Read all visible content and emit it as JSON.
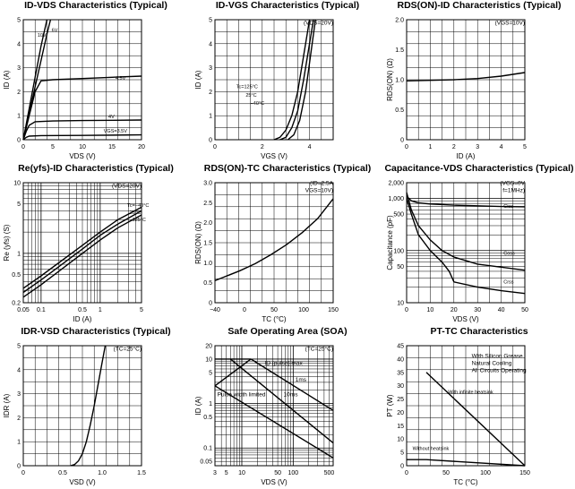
{
  "panels": [
    {
      "title": "ID-VDS Characteristics (Typical)",
      "ylabel": "ID (A)",
      "xlabel": "VDS (V)",
      "annotations": [],
      "xticks": [
        "0",
        "5",
        "10",
        "15",
        "20"
      ],
      "yticks": [
        "0",
        "1",
        "2",
        "3",
        "4",
        "5"
      ],
      "chart_data": {
        "type": "line",
        "xlim": [
          0,
          20
        ],
        "ylim": [
          0,
          5
        ],
        "xscale": "linear",
        "yscale": "linear",
        "grid": true,
        "series": [
          {
            "name": "10V",
            "x": [
              0,
              1,
              2,
              3,
              4
            ],
            "y": [
              0,
              1.3,
              2.6,
              3.9,
              5.0
            ]
          },
          {
            "name": "6V",
            "x": [
              0,
              1,
              2,
              3,
              4,
              4.6
            ],
            "y": [
              0,
              1.1,
              2.2,
              3.3,
              4.4,
              5.0
            ]
          },
          {
            "name": "4.5V",
            "x": [
              0,
              1,
              2,
              3,
              5,
              10,
              15,
              20
            ],
            "y": [
              0,
              1.0,
              2.0,
              2.45,
              2.5,
              2.55,
              2.6,
              2.65
            ]
          },
          {
            "name": "4V",
            "x": [
              0,
              0.5,
              1,
              2,
              5,
              10,
              20
            ],
            "y": [
              0,
              0.35,
              0.6,
              0.75,
              0.78,
              0.8,
              0.82
            ]
          },
          {
            "name": "VGS=3.5V",
            "x": [
              0,
              0.5,
              1,
              3,
              10,
              20
            ],
            "y": [
              0,
              0.1,
              0.15,
              0.17,
              0.18,
              0.2
            ]
          }
        ]
      }
    },
    {
      "title": "ID-VGS Characteristics (Typical)",
      "ylabel": "ID (A)",
      "xlabel": "VGS (V)",
      "annotations": [
        "(VDS=20V)"
      ],
      "xticks": [
        "0",
        "",
        "2",
        "",
        "4",
        ""
      ],
      "yticks": [
        "0",
        "1",
        "2",
        "3",
        "4",
        "5"
      ],
      "chart_data": {
        "type": "line",
        "xlim": [
          0,
          6
        ],
        "ylim": [
          0,
          5
        ],
        "xscale": "linear",
        "yscale": "linear",
        "grid": true,
        "series": [
          {
            "name": "Tc=125°C",
            "x": [
              3.0,
              3.3,
              3.6,
              3.9,
              4.2,
              4.5,
              4.8
            ],
            "y": [
              0,
              0.1,
              0.4,
              1.0,
              2.0,
              3.5,
              5.0
            ]
          },
          {
            "name": "25°C",
            "x": [
              3.3,
              3.6,
              3.9,
              4.2,
              4.5,
              4.8,
              5.0
            ],
            "y": [
              0,
              0.1,
              0.5,
              1.2,
              2.5,
              4.0,
              5.0
            ]
          },
          {
            "name": "−40°C",
            "x": [
              3.7,
              4.0,
              4.3,
              4.6,
              4.9,
              5.1
            ],
            "y": [
              0,
              0.2,
              0.8,
              2.0,
              3.8,
              5.0
            ]
          }
        ]
      }
    },
    {
      "title": "RDS(ON)-ID Characteristics (Typical)",
      "ylabel": "RDS(ON) (Ω)",
      "xlabel": "ID (A)",
      "annotations": [
        "(VGS=10V)"
      ],
      "xticks": [
        "0",
        "1",
        "2",
        "3",
        "4",
        "5"
      ],
      "yticks": [
        "0",
        "0.5",
        "1.0",
        "1.5",
        "2.0"
      ],
      "chart_data": {
        "type": "line",
        "xlim": [
          0,
          5
        ],
        "ylim": [
          0,
          2
        ],
        "xscale": "linear",
        "yscale": "linear",
        "grid": true,
        "series": [
          {
            "name": "",
            "x": [
              0,
              1,
              2,
              3,
              4,
              5
            ],
            "y": [
              0.98,
              0.99,
              1.0,
              1.02,
              1.06,
              1.12
            ]
          }
        ]
      }
    },
    {
      "title": "Re(yfs)-ID Characteristics (Typical)",
      "ylabel": "Re (yfs) (S)",
      "xlabel": "ID (A)",
      "annotations": [
        "(VDS=20V)"
      ],
      "xticks": [
        "0.05",
        "0.1",
        "0.5",
        "1",
        "5"
      ],
      "yticks": [
        "0.2",
        "0.5",
        "1",
        "5",
        "10"
      ],
      "chart_data": {
        "type": "line",
        "xlim": [
          0.05,
          5
        ],
        "ylim": [
          0.2,
          10
        ],
        "xscale": "log",
        "yscale": "log",
        "grid": true,
        "series": [
          {
            "name": "Tc=−40°C",
            "x": [
              0.05,
              0.1,
              0.5,
              1,
              2,
              5
            ],
            "y": [
              0.32,
              0.48,
              1.3,
              2.0,
              3.0,
              4.5
            ]
          },
          {
            "name": "25°C",
            "x": [
              0.05,
              0.1,
              0.5,
              1,
              2,
              5
            ],
            "y": [
              0.28,
              0.42,
              1.15,
              1.8,
              2.6,
              4.0
            ]
          },
          {
            "name": "125°C",
            "x": [
              0.05,
              0.1,
              0.5,
              1,
              2,
              5
            ],
            "y": [
              0.24,
              0.36,
              1.0,
              1.55,
              2.3,
              3.5
            ]
          }
        ]
      }
    },
    {
      "title": "RDS(ON)-TC Characteristics (Typical)",
      "ylabel": "RDS(ON) (Ω)",
      "xlabel": "TC (°C)",
      "annotations": [
        "(ID=2.5A",
        "VGS=10V)"
      ],
      "xticks": [
        "−40",
        "0",
        "50",
        "100",
        "150"
      ],
      "yticks": [
        "0",
        "0.5",
        "1.0",
        "1.5",
        "2.0",
        "2.5",
        "3.0"
      ],
      "chart_data": {
        "type": "line",
        "xlim": [
          -40,
          150
        ],
        "ylim": [
          0,
          3
        ],
        "xscale": "linear",
        "yscale": "linear",
        "grid": true,
        "series": [
          {
            "name": "",
            "x": [
              -40,
              0,
              25,
              50,
              75,
              100,
              125,
              150
            ],
            "y": [
              0.55,
              0.8,
              0.98,
              1.2,
              1.45,
              1.75,
              2.1,
              2.6
            ]
          }
        ]
      }
    },
    {
      "title": "Capacitance-VDS Characteristics (Typical)",
      "ylabel": "Capacitance (pF)",
      "xlabel": "VDS (V)",
      "annotations": [
        "(VGS=0V",
        "f=1MHz)"
      ],
      "xticks": [
        "0",
        "10",
        "20",
        "30",
        "40",
        "50"
      ],
      "yticks": [
        "10",
        "50",
        "100",
        "500",
        "1,000",
        "2,000"
      ],
      "chart_data": {
        "type": "line",
        "xlim": [
          0,
          50
        ],
        "ylim": [
          10,
          2000
        ],
        "xscale": "linear",
        "yscale": "log",
        "grid": true,
        "series": [
          {
            "name": "Ciss",
            "x": [
              0,
              2,
              5,
              10,
              20,
              30,
              40,
              50
            ],
            "y": [
              1100,
              900,
              820,
              780,
              740,
              720,
              700,
              690
            ]
          },
          {
            "name": "Coss",
            "x": [
              0,
              2,
              5,
              10,
              15,
              20,
              30,
              40,
              50
            ],
            "y": [
              1300,
              600,
              300,
              160,
              100,
              75,
              55,
              48,
              42
            ]
          },
          {
            "name": "Crss",
            "x": [
              0,
              2,
              5,
              10,
              15,
              18,
              20,
              30,
              40,
              50
            ],
            "y": [
              1000,
              500,
              200,
              100,
              60,
              40,
              25,
              20,
              17,
              15
            ]
          }
        ]
      }
    },
    {
      "title": "IDR-VSD Characteristics (Typical)",
      "ylabel": "IDR (A)",
      "xlabel": "VSD (V)",
      "annotations": [
        "(TC=25°C)"
      ],
      "xticks": [
        "0",
        "0.5",
        "1.0",
        "1.5"
      ],
      "yticks": [
        "0",
        "1",
        "2",
        "3",
        "4",
        "5"
      ],
      "chart_data": {
        "type": "line",
        "xlim": [
          0,
          1.5
        ],
        "ylim": [
          0,
          5
        ],
        "xscale": "linear",
        "yscale": "linear",
        "grid": true,
        "series": [
          {
            "name": "",
            "x": [
              0.6,
              0.65,
              0.7,
              0.75,
              0.8,
              0.85,
              0.9,
              0.95,
              1.0,
              1.04
            ],
            "y": [
              0,
              0.05,
              0.2,
              0.5,
              1.0,
              1.7,
              2.5,
              3.4,
              4.3,
              5.0
            ]
          }
        ]
      }
    },
    {
      "title": "Safe Operating Area (SOA)",
      "ylabel": "ID (A)",
      "xlabel": "VDS (V)",
      "annotations": [
        "(TC=25°C)",
        "ID (pulse) max",
        "Pulse width limited",
        "10ms",
        "1ms"
      ],
      "xticks": [
        "3",
        "5",
        "10",
        "50",
        "100",
        "500"
      ],
      "yticks": [
        "0.05",
        "0.1",
        "0.5",
        "1",
        "5",
        "10",
        "20"
      ],
      "chart_data": {
        "type": "line",
        "xlim": [
          3,
          600
        ],
        "ylim": [
          0.04,
          20
        ],
        "xscale": "log",
        "yscale": "log",
        "grid": true,
        "series": [
          {
            "name": "ID (pulse) max",
            "x": [
              3,
              15
            ],
            "y": [
              10,
              10
            ]
          },
          {
            "name": "1ms",
            "x": [
              15,
              600
            ],
            "y": [
              10,
              0.7
            ]
          },
          {
            "name": "10ms",
            "x": [
              6,
              600
            ],
            "y": [
              10,
              0.13
            ]
          },
          {
            "name": "Pulse width limited",
            "x": [
              3,
              15
            ],
            "y": [
              2.5,
              10
            ]
          },
          {
            "name": "",
            "x": [
              3,
              600
            ],
            "y": [
              2.5,
              0.06
            ]
          }
        ]
      }
    },
    {
      "title": "PT-TC Characteristics",
      "ylabel": "PT (W)",
      "xlabel": "TC (°C)",
      "annotations": [
        "With Silicon Grease",
        "Natural Cooling",
        "All Circuits Operating"
      ],
      "xticks": [
        "0",
        "50",
        "100",
        "150"
      ],
      "yticks": [
        "0",
        "5",
        "10",
        "15",
        "20",
        "25",
        "30",
        "35",
        "40",
        "45"
      ],
      "chart_data": {
        "type": "line",
        "xlim": [
          0,
          150
        ],
        "ylim": [
          0,
          45
        ],
        "xscale": "linear",
        "yscale": "linear",
        "grid": true,
        "series": [
          {
            "name": "With infinite heatsink",
            "x": [
              25,
              150
            ],
            "y": [
              35,
              0
            ]
          },
          {
            "name": "Without heatsink",
            "x": [
              0,
              25,
              150
            ],
            "y": [
              2.3,
              2.3,
              0
            ]
          }
        ]
      }
    }
  ]
}
